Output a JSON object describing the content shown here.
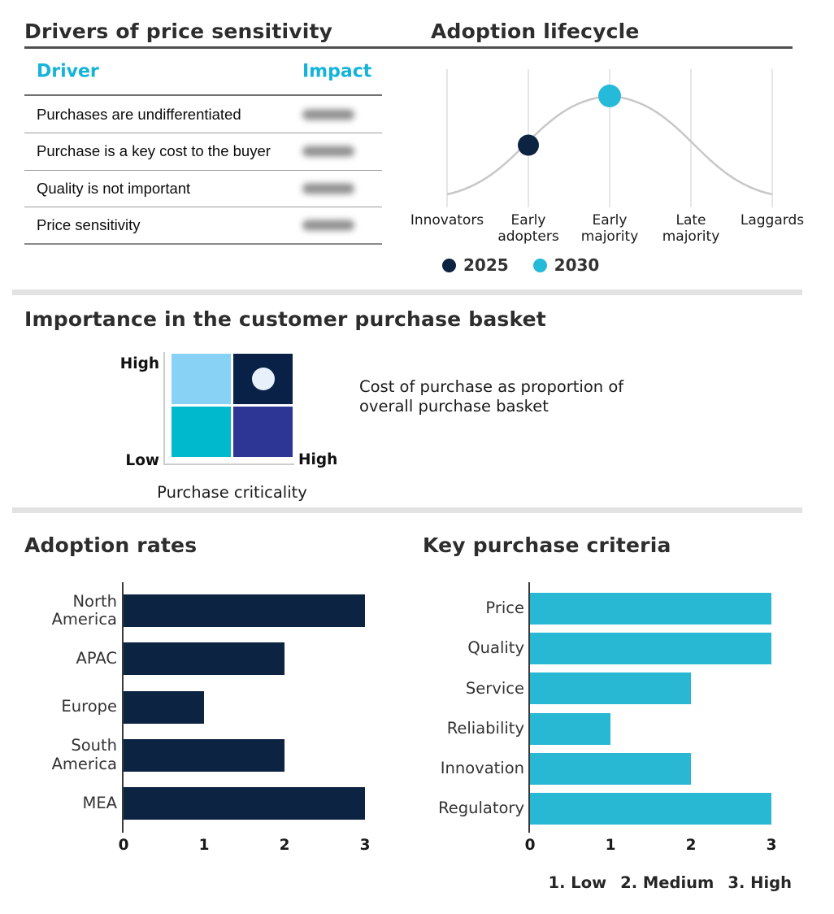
{
  "colors": {
    "navy": "#0d2342",
    "cyan": "#29b8d3",
    "table_header_accent": "#14b4da",
    "curve_gray": "#c8c8c8",
    "gridline_gray": "#dedede",
    "divider_gray": "#e2e2e2"
  },
  "chart_data": [
    {
      "type": "table",
      "title": "Drivers of price sensitivity",
      "columns": [
        "Driver",
        "Impact"
      ],
      "impact_column_redacted": true,
      "rows": [
        {
          "driver": "Purchases are undifferentiated",
          "impact_redacted": true
        },
        {
          "driver": "Purchase is a key cost to the buyer",
          "impact_redacted": true
        },
        {
          "driver": "Quality is not important",
          "impact_redacted": true
        },
        {
          "driver": "Price sensitivity",
          "impact_redacted": true
        }
      ]
    },
    {
      "type": "scatter",
      "title": "Adoption lifecycle",
      "curve": "bell",
      "legend_position": "bottom",
      "categories": [
        "Innovators",
        "Early adopters",
        "Early majority",
        "Late majority",
        "Laggards"
      ],
      "series": [
        {
          "name": "2025",
          "category": "Early adopters",
          "curve_height": 0.5,
          "color": "#0d2342",
          "radius": 13
        },
        {
          "name": "2030",
          "category": "Early majority",
          "curve_height": 1.0,
          "color": "#25bad8",
          "radius": 14
        }
      ]
    },
    {
      "type": "matrix",
      "title": "Importance in the customer purchase basket",
      "xlabel": "Purchase criticality",
      "x_axis_max_label": "High",
      "y_axis_max_label": "High",
      "y_axis_min_label": "Low",
      "quadrant_colors": {
        "top_left": "#88d3f5",
        "top_right": "#0a2147",
        "bottom_left": "#00b9cd",
        "bottom_right": "#2d3694"
      },
      "marker": {
        "quadrant": "top_right",
        "color": "#e8f1fb"
      },
      "annotation": "Cost of purchase as proportion of overall purchase basket"
    },
    {
      "type": "bar",
      "orientation": "horizontal",
      "title": "Adoption rates",
      "categories": [
        "North America",
        "APAC",
        "Europe",
        "South America",
        "MEA"
      ],
      "values": [
        3,
        2,
        1,
        2,
        3
      ],
      "xlim": [
        0,
        3
      ],
      "xticks": [
        0,
        1,
        2,
        3
      ],
      "color": "#0d2342"
    },
    {
      "type": "bar",
      "orientation": "horizontal",
      "title": "Key purchase criteria",
      "categories": [
        "Price",
        "Quality",
        "Service",
        "Reliability",
        "Innovation",
        "Regulatory"
      ],
      "values": [
        3,
        3,
        2,
        1,
        2,
        3
      ],
      "xlim": [
        0,
        3
      ],
      "xticks": [
        0,
        1,
        2,
        3
      ],
      "color": "#29b8d3",
      "scale_note": [
        "1. Low",
        "2. Medium",
        "3. High"
      ]
    }
  ]
}
